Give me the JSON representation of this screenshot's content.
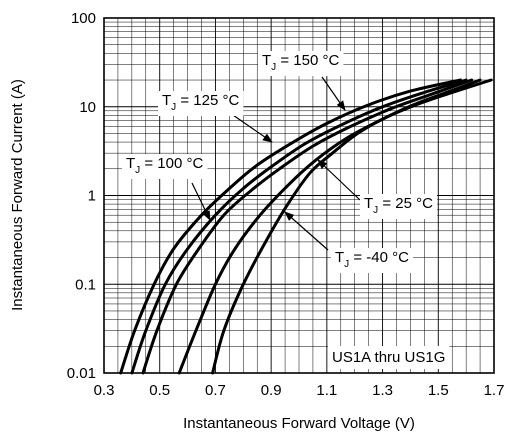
{
  "chart_data": {
    "type": "line",
    "title": "",
    "xlabel": "Instantaneous Forward Voltage (V)",
    "ylabel": "Instantaneous Forward Current (A)",
    "xlim": [
      0.3,
      1.7
    ],
    "ylim": [
      0.01,
      100
    ],
    "yscale": "log",
    "grid": true,
    "x_ticks": [
      "0.3",
      "0.5",
      "0.7",
      "0.9",
      "1.1",
      "1.3",
      "1.5",
      "1.7"
    ],
    "y_ticks": [
      "0.01",
      "0.1",
      "1",
      "10",
      "100"
    ],
    "annotation": "US1A thru US1G",
    "series": [
      {
        "name": "150 °C",
        "label_main": "T",
        "label_sub": "J",
        "label_rest": " = 150 °C",
        "x": [
          0.36,
          0.41,
          0.48,
          0.55,
          0.65,
          0.75,
          0.85,
          0.98,
          1.1,
          1.25,
          1.4,
          1.58
        ],
        "y": [
          0.01,
          0.03,
          0.1,
          0.25,
          0.6,
          1.2,
          2.2,
          4.0,
          6.5,
          10.5,
          15.0,
          20.0
        ]
      },
      {
        "name": "125 °C",
        "label_main": "T",
        "label_sub": "J",
        "label_rest": " = 125 °C",
        "x": [
          0.4,
          0.45,
          0.52,
          0.6,
          0.7,
          0.8,
          0.9,
          1.02,
          1.15,
          1.3,
          1.45,
          1.6
        ],
        "y": [
          0.01,
          0.03,
          0.1,
          0.25,
          0.6,
          1.2,
          2.1,
          3.8,
          6.2,
          10.0,
          14.5,
          20.0
        ]
      },
      {
        "name": "100 °C",
        "label_main": "T",
        "label_sub": "J",
        "label_rest": " = 100 °C",
        "x": [
          0.44,
          0.49,
          0.56,
          0.64,
          0.73,
          0.83,
          0.93,
          1.05,
          1.18,
          1.33,
          1.48,
          1.62
        ],
        "y": [
          0.01,
          0.03,
          0.1,
          0.25,
          0.6,
          1.15,
          2.0,
          3.6,
          5.9,
          9.5,
          14.0,
          20.0
        ]
      },
      {
        "name": "25 °C",
        "label_main": "T",
        "label_sub": "J",
        "label_rest": " = 25 °C",
        "x": [
          0.57,
          0.63,
          0.7,
          0.77,
          0.86,
          0.96,
          1.06,
          1.17,
          1.29,
          1.41,
          1.53,
          1.65
        ],
        "y": [
          0.01,
          0.03,
          0.1,
          0.25,
          0.6,
          1.3,
          2.5,
          4.4,
          7.0,
          10.5,
          14.5,
          20.0
        ]
      },
      {
        "name": "-40 °C",
        "label_main": "T",
        "label_sub": "J",
        "label_rest": " = -40 °C",
        "x": [
          0.69,
          0.73,
          0.8,
          0.88,
          0.96,
          1.04,
          1.12,
          1.21,
          1.31,
          1.42,
          1.55,
          1.69
        ],
        "y": [
          0.01,
          0.03,
          0.1,
          0.3,
          0.8,
          1.8,
          3.0,
          5.0,
          7.5,
          10.5,
          14.5,
          20.0
        ]
      }
    ]
  }
}
